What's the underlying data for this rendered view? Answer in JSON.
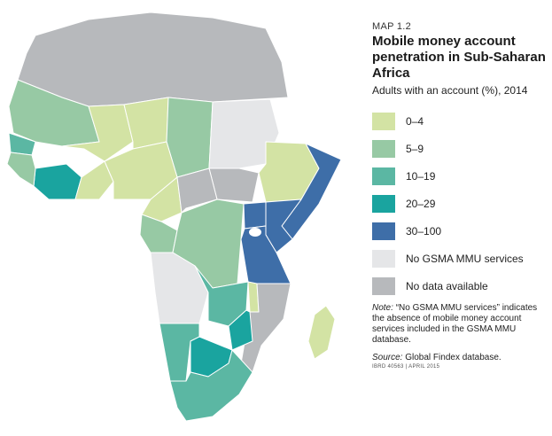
{
  "header": {
    "map_number": "MAP 1.2",
    "title": "Mobile money account penetration in Sub-Saharan Africa",
    "subtitle": "Adults with an account (%), 2014"
  },
  "legend": [
    {
      "label": "0–4",
      "color": "#d3e3a4"
    },
    {
      "label": "5–9",
      "color": "#97c9a4"
    },
    {
      "label": "10–19",
      "color": "#5bb7a3"
    },
    {
      "label": "20–29",
      "color": "#1aa49f"
    },
    {
      "label": "30–100",
      "color": "#3e6ea8"
    },
    {
      "label": "No GSMA MMU services",
      "color": "#e5e6e8"
    },
    {
      "label": "No data available",
      "color": "#b7b9bc"
    }
  ],
  "note": {
    "prefix": "Note:",
    "text": "“No GSMA MMU services” indicates the absence of mobile money account services included in the GSMA MMU database."
  },
  "source": {
    "prefix": "Source:",
    "text": "Global Findex database."
  },
  "ibrd": "IBRD 40563  |  APRIL 2015",
  "map": {
    "regions": [
      {
        "name": "north-africa",
        "category": "No data available"
      },
      {
        "name": "mauritania",
        "category": "5–9"
      },
      {
        "name": "mali",
        "category": "0–4"
      },
      {
        "name": "niger",
        "category": "0–4"
      },
      {
        "name": "chad",
        "category": "5–9"
      },
      {
        "name": "sudan",
        "category": "No GSMA MMU services"
      },
      {
        "name": "south-sudan",
        "category": "No data available"
      },
      {
        "name": "ethiopia",
        "category": "0–4"
      },
      {
        "name": "somalia",
        "category": "30–100"
      },
      {
        "name": "senegal",
        "category": "10–19"
      },
      {
        "name": "cote-divoire",
        "category": "20–29"
      },
      {
        "name": "nigeria",
        "category": "0–4"
      },
      {
        "name": "cameroon",
        "category": "0–4"
      },
      {
        "name": "car",
        "category": "No data available"
      },
      {
        "name": "drc",
        "category": "5–9"
      },
      {
        "name": "gabon-congo",
        "category": "5–9"
      },
      {
        "name": "kenya",
        "category": "30–100"
      },
      {
        "name": "uganda",
        "category": "30–100"
      },
      {
        "name": "tanzania",
        "category": "30–100"
      },
      {
        "name": "angola",
        "category": "No GSMA MMU services"
      },
      {
        "name": "zambia",
        "category": "10–19"
      },
      {
        "name": "mozambique",
        "category": "No data available"
      },
      {
        "name": "madagascar",
        "category": "0–4"
      },
      {
        "name": "namibia",
        "category": "10–19"
      },
      {
        "name": "botswana",
        "category": "20–29"
      },
      {
        "name": "zimbabwe",
        "category": "20–29"
      },
      {
        "name": "south-africa",
        "category": "10–19"
      }
    ]
  }
}
